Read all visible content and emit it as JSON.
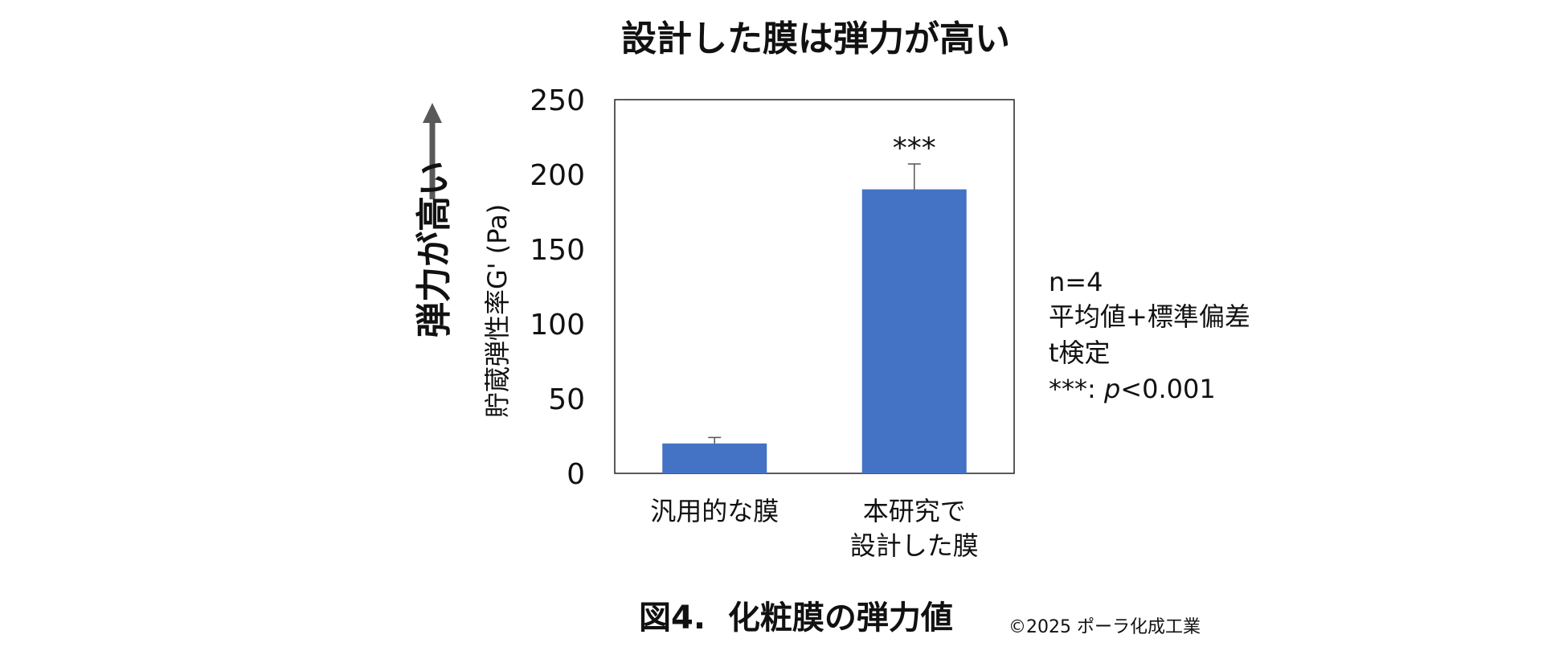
{
  "chart_data": {
    "type": "bar",
    "title": "設計した膜は弾力が高い",
    "ylabel": "貯蔵弾性率G' (Pa)",
    "direction_label": "弾力が高い",
    "ylim": [
      0,
      250
    ],
    "yticks": [
      0,
      50,
      100,
      150,
      200,
      250
    ],
    "categories": [
      [
        "汎用的な膜"
      ],
      [
        "本研究で",
        "設計した膜"
      ]
    ],
    "values": [
      20,
      190
    ],
    "error_plus": [
      4,
      17
    ],
    "significance": [
      "",
      "***"
    ],
    "bar_color": "#4472C4",
    "grid": false,
    "legend": "none"
  },
  "notes": {
    "n": "n=4",
    "stat": "平均値+標準偏差",
    "test": "t検定",
    "sig_prefix": "***: ",
    "sig_p": "p",
    "sig_suffix": "<0.001"
  },
  "caption": "図4.  化粧膜の弾力値",
  "copyright": "©2025 ポーラ化成工業"
}
